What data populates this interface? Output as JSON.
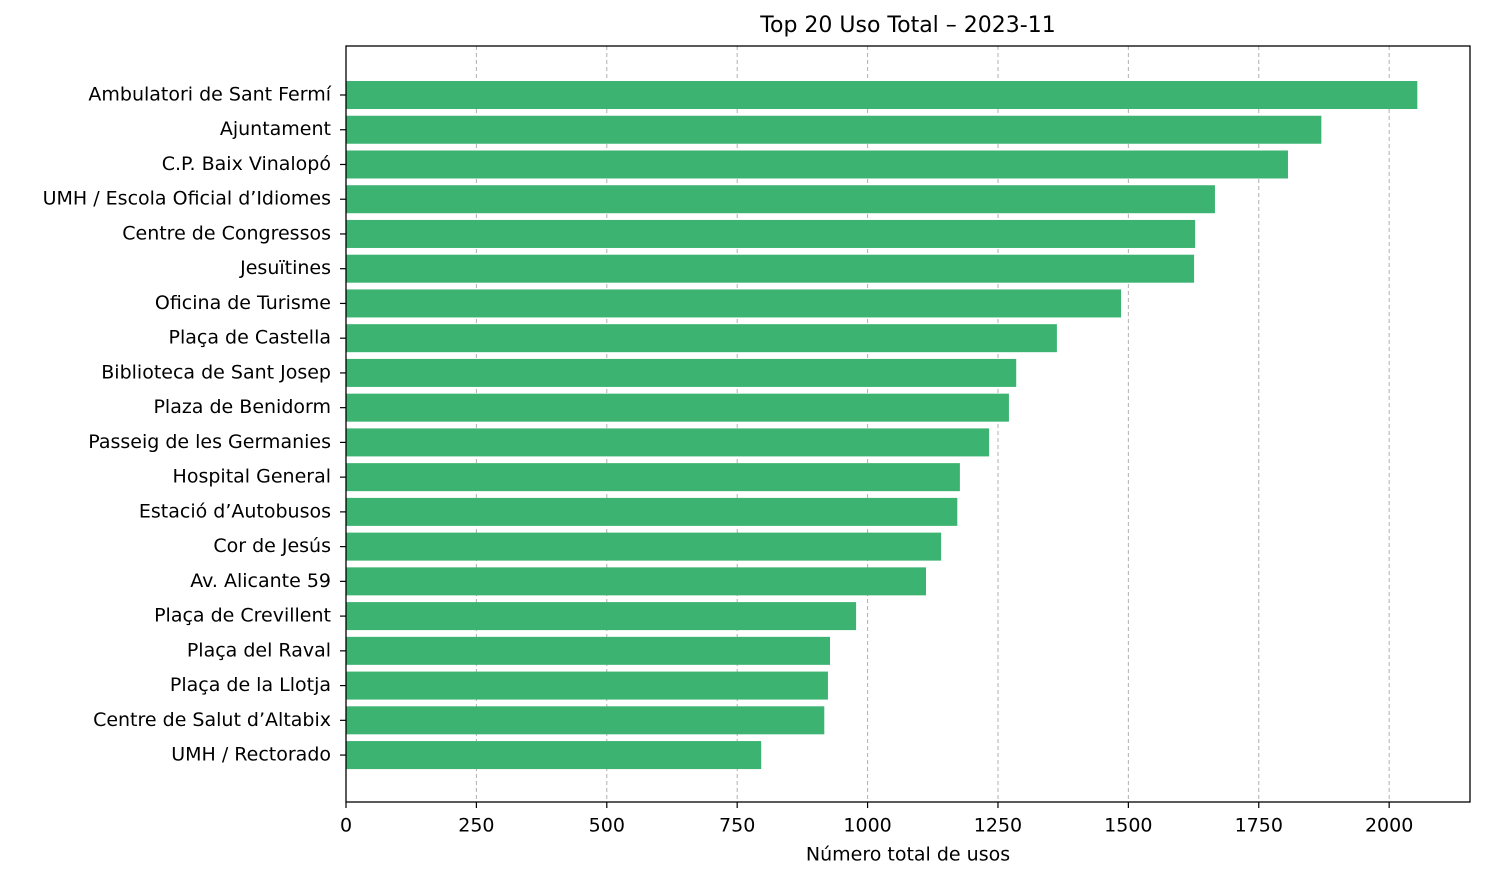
{
  "chart_data": {
    "type": "barh",
    "title": "Top 20 Uso Total – 2023-11",
    "xlabel": "Número total de usos",
    "categories": [
      "Ambulatori de Sant Fermí",
      "Ajuntament",
      "C.P. Baix Vinalopó",
      "UMH / Escola Oficial d’Idiomes",
      "Centre de Congressos",
      "Jesuïtines",
      "Oficina de Turisme",
      "Plaça de Castella",
      "Biblioteca de Sant Josep",
      "Plaza de Benidorm",
      "Passeig de les Germanies",
      "Hospital General",
      "Estació d’Autobusos",
      "Cor de Jesús",
      "Av. Alicante 59",
      "Plaça de Crevillent",
      "Plaça del Raval",
      "Plaça de la Llotja",
      "Centre de Salut d’Altabix",
      "UMH / Rectorado"
    ],
    "values": [
      2054,
      1870,
      1806,
      1666,
      1628,
      1626,
      1486,
      1363,
      1285,
      1271,
      1233,
      1177,
      1172,
      1141,
      1112,
      978,
      928,
      924,
      917,
      796
    ],
    "color": "#3cb371",
    "xlim": [
      0,
      2155
    ],
    "xticks": [
      0,
      250,
      500,
      750,
      1000,
      1250,
      1500,
      1750,
      2000
    ],
    "grid": true
  }
}
